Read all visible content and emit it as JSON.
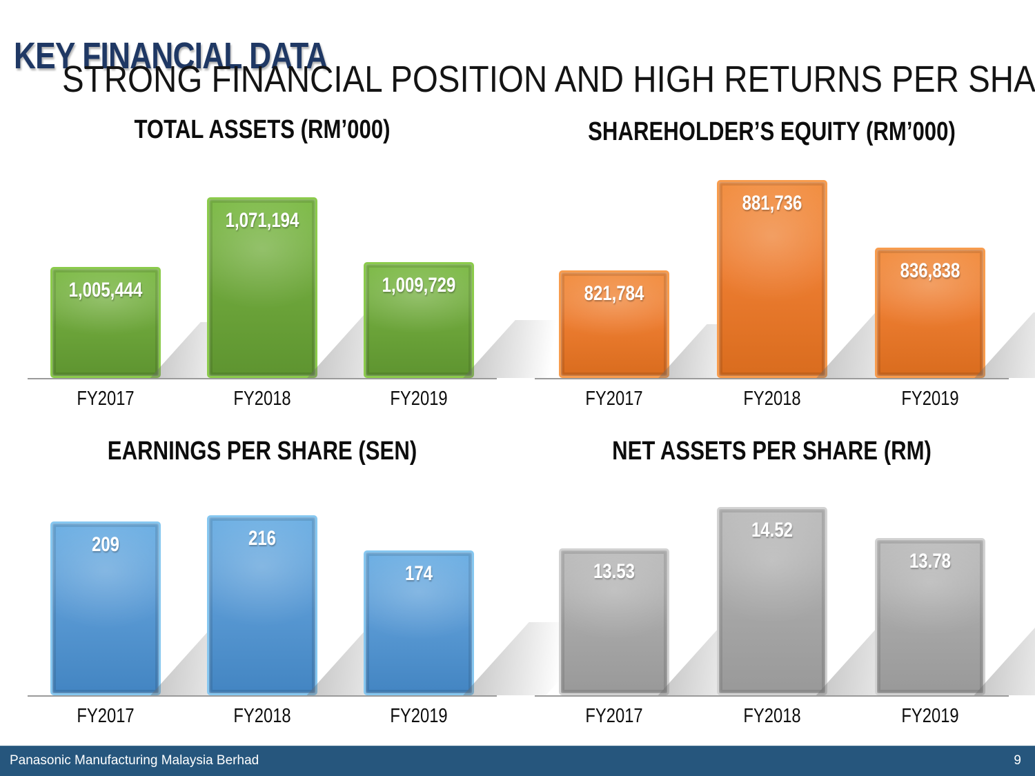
{
  "slide": {
    "title": "KEY FINANCIAL DATA",
    "subtitle": "STRONG FINANCIAL POSITION AND HIGH RETURNS PER SHARE"
  },
  "chart_data": [
    {
      "type": "bar",
      "title": "TOTAL ASSETS (RM’000)",
      "categories": [
        "FY2017",
        "FY2018",
        "FY2019"
      ],
      "values": [
        1005444,
        1071194,
        1009729
      ],
      "value_labels": [
        "1,005,444",
        "1,071,194",
        "1,009,729"
      ],
      "ylim": [
        900000,
        1100000
      ],
      "grid": false,
      "legend": false,
      "colors": {
        "body": "#6fa83c",
        "body_light": "#7fbc49",
        "body_dark": "#5e9430",
        "edge": "#8bcb4b"
      }
    },
    {
      "type": "bar",
      "title": "SHAREHOLDER’S EQUITY (RM’000)",
      "categories": [
        "FY2017",
        "FY2018",
        "FY2019"
      ],
      "values": [
        821784,
        881736,
        836838
      ],
      "value_labels": [
        "821,784",
        "881,736",
        "836,838"
      ],
      "ylim": [
        750000,
        900000
      ],
      "grid": false,
      "legend": false,
      "colors": {
        "body": "#ed7d31",
        "body_light": "#f28f42",
        "body_dark": "#d96c1e",
        "edge": "#f89c4d"
      }
    },
    {
      "type": "bar",
      "title": "EARNINGS PER SHARE (SEN)",
      "categories": [
        "FY2017",
        "FY2018",
        "FY2019"
      ],
      "values": [
        209,
        216,
        174
      ],
      "value_labels": [
        "209",
        "216",
        "174"
      ],
      "ylim": [
        0,
        250
      ],
      "grid": false,
      "legend": false,
      "colors": {
        "body": "#5b9bd5",
        "body_light": "#6eb0e4",
        "body_dark": "#4385c2",
        "edge": "#86c7f0"
      }
    },
    {
      "type": "bar",
      "title": "NET ASSETS PER SHARE (RM)",
      "categories": [
        "FY2017",
        "FY2018",
        "FY2019"
      ],
      "values": [
        13.53,
        14.52,
        13.78
      ],
      "value_labels": [
        "13.53",
        "14.52",
        "13.78"
      ],
      "ylim": [
        10,
        15
      ],
      "grid": false,
      "legend": false,
      "colors": {
        "body": "#a9a9a9",
        "body_light": "#bdbdbd",
        "body_dark": "#999999",
        "edge": "#d2d2d2"
      }
    }
  ],
  "footer": {
    "company": "Panasonic Manufacturing Malaysia Berhad",
    "page_number": "9",
    "bar_color": "#26567d"
  }
}
